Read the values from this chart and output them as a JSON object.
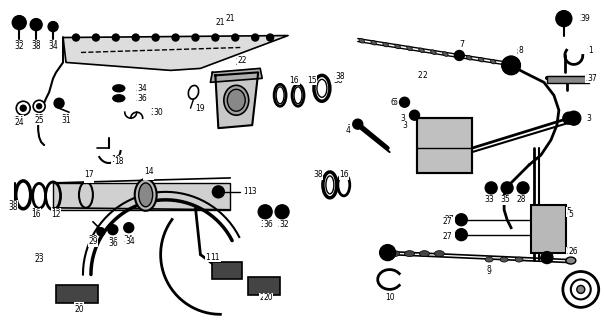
{
  "background_color": "#ffffff",
  "figure_width": 6.04,
  "figure_height": 3.2,
  "dpi": 100,
  "line_color": "#000000",
  "label_fontsize": 5.5
}
